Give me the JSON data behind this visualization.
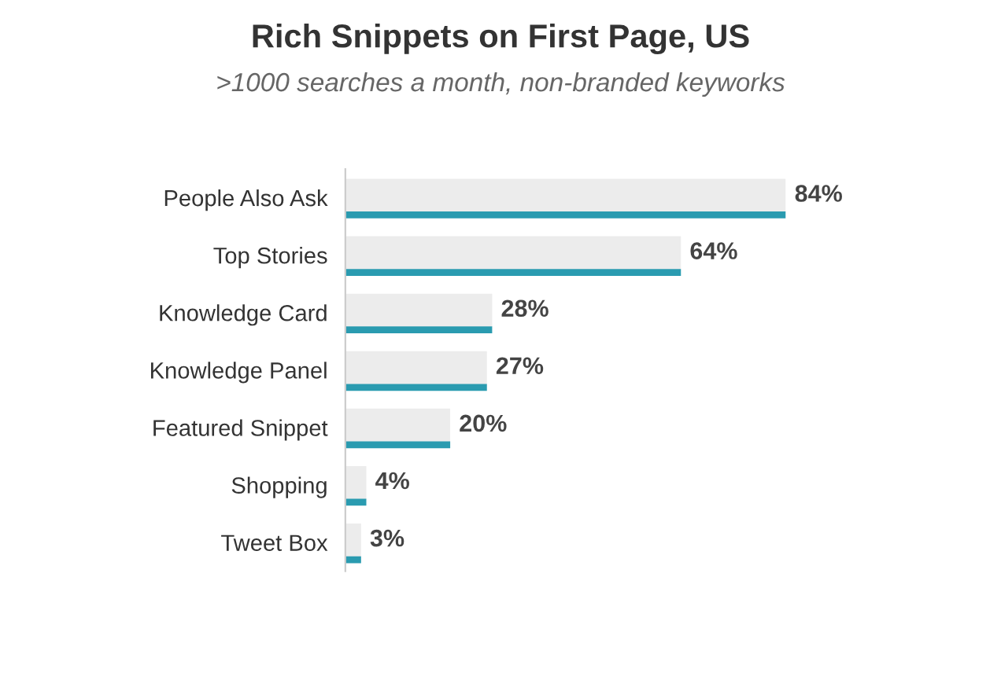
{
  "chart_data": {
    "type": "bar",
    "orientation": "horizontal",
    "title": "Rich Snippets on First Page, US",
    "subtitle": ">1000 searches a month, non-branded keyworks",
    "categories": [
      "People Also Ask",
      "Top Stories",
      "Knowledge Card",
      "Knowledge Panel",
      "Featured Snippet",
      "Shopping",
      "Tweet Box"
    ],
    "series": [
      {
        "color": "#ececec",
        "values": [
          84,
          64,
          28,
          27,
          20,
          4,
          3
        ],
        "value_labels": [
          "84%",
          "64%",
          "28%",
          "27%",
          "20%",
          "4%",
          "3%"
        ]
      },
      {
        "color": "#2a9bb0",
        "values": [
          84,
          64,
          28,
          27,
          20,
          4,
          3
        ]
      }
    ],
    "grid": false,
    "legend": false
  }
}
